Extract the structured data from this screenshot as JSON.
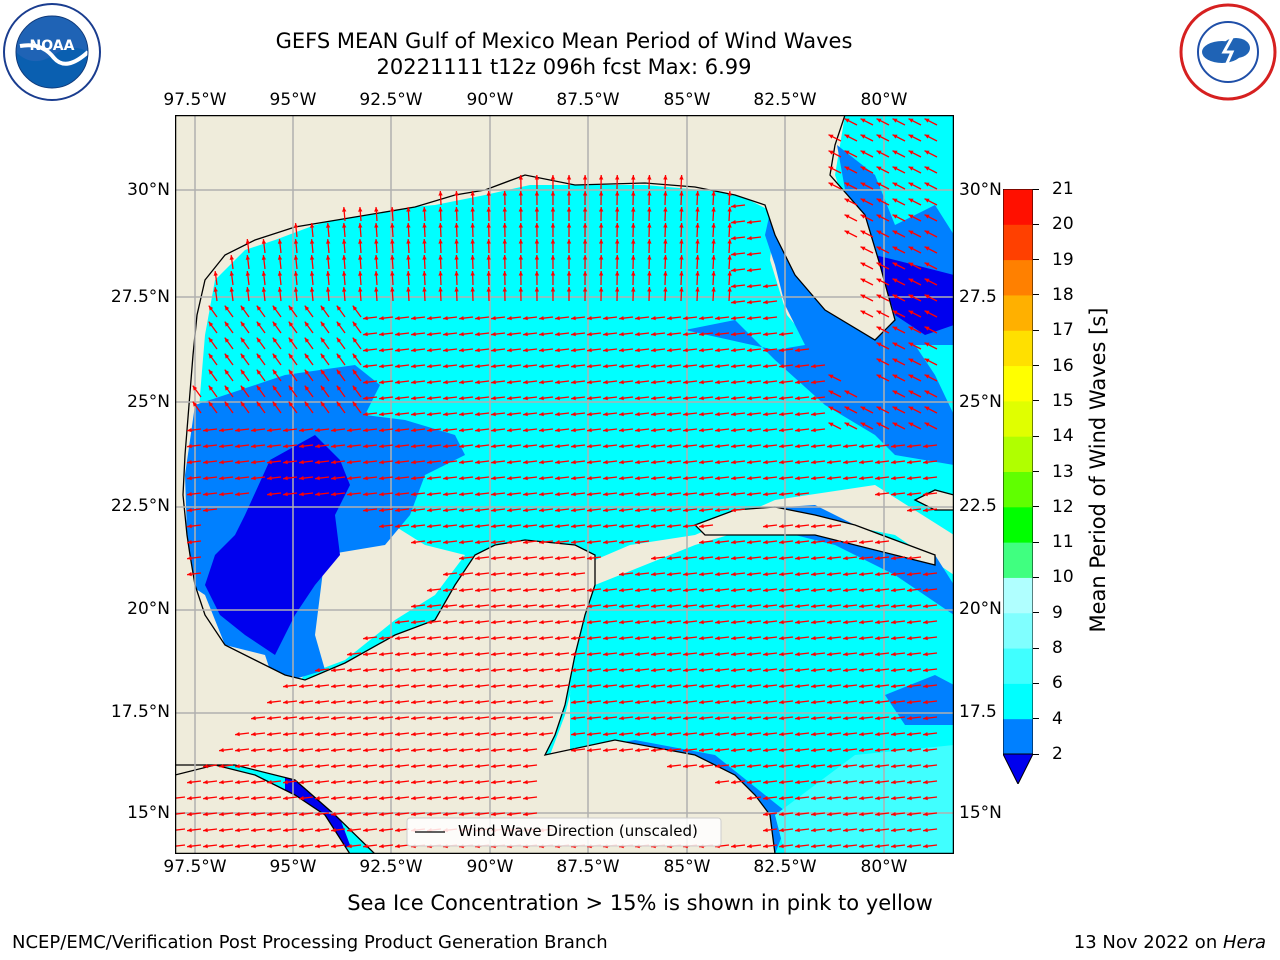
{
  "title": {
    "line1": "GEFS MEAN Gulf of Mexico Mean Period of Wind Waves",
    "line2": "20221111 t12z 096h fcst   Max: 6.99"
  },
  "logos": {
    "left": "NOAA",
    "right": "NATIONAL WEATHER SERVICE"
  },
  "map": {
    "lon_ticks": [
      "97.5°W",
      "95°W",
      "92.5°W",
      "90°W",
      "87.5°W",
      "85°W",
      "82.5°W",
      "80°W"
    ],
    "lat_ticks_left": [
      "30°N",
      "27.5°N",
      "25°N",
      "22.5°N",
      "20°N",
      "17.5°N",
      "15°N"
    ],
    "lat_ticks_right": [
      "30°N",
      "27.5",
      "25°N",
      "22.5",
      "20°N",
      "17.5",
      "15°N"
    ],
    "legend": "Wind Wave Direction (unscaled)",
    "colors": {
      "land": "#efecdb",
      "ocean_4_6": "#00ffff",
      "ocean_2_4": "#0080ff",
      "ocean_lt2": "#0000ee",
      "ocean_6_8": "#40ffff",
      "arrow": "#ff0000"
    }
  },
  "colorbar": {
    "label": "Mean Period of Wind Waves [s]",
    "levels": [
      "2",
      "4",
      "6",
      "8",
      "9",
      "10",
      "11",
      "12",
      "13",
      "14",
      "15",
      "16",
      "17",
      "18",
      "19",
      "20",
      "21"
    ],
    "colors": [
      "#0080ff",
      "#00ffff",
      "#40ffff",
      "#80ffff",
      "#b0ffff",
      "#40ff80",
      "#00ff00",
      "#60ff00",
      "#b0ff00",
      "#e0ff00",
      "#ffff00",
      "#ffe000",
      "#ffb000",
      "#ff8000",
      "#ff4000",
      "#ff1000"
    ],
    "under_color": "#0000ee"
  },
  "footer": {
    "ice_note": "Sea Ice Concentration > 15% is shown in pink to yellow",
    "left": "NCEP/EMC/Verification Post Processing Product Generation Branch",
    "right_date": "13 Nov 2022 on ",
    "right_host": "Hera"
  }
}
